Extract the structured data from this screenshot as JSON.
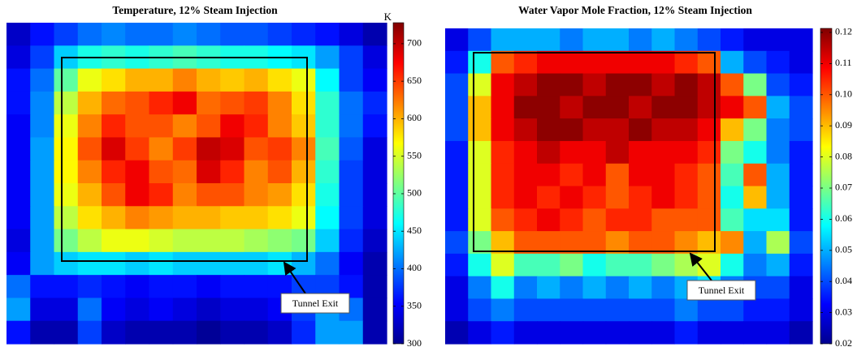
{
  "chart_data": [
    {
      "type": "heatmap",
      "title": "Temperature, 12% Steam Injection",
      "colormap": "jet",
      "colorbar_label": "K",
      "annotation": "Tunnel Exit",
      "zlim": [
        300,
        728
      ],
      "zticks": [
        300,
        350,
        400,
        450,
        500,
        550,
        600,
        650,
        700
      ],
      "z": [
        [
          330,
          360,
          380,
          400,
          410,
          400,
          400,
          410,
          400,
          390,
          390,
          380,
          370,
          360,
          340,
          320
        ],
        [
          340,
          380,
          440,
          470,
          480,
          470,
          480,
          490,
          480,
          470,
          470,
          460,
          450,
          420,
          380,
          340
        ],
        [
          360,
          400,
          500,
          560,
          580,
          600,
          600,
          620,
          600,
          590,
          600,
          580,
          560,
          460,
          380,
          350
        ],
        [
          360,
          410,
          540,
          600,
          630,
          640,
          660,
          680,
          630,
          640,
          650,
          620,
          580,
          480,
          400,
          370
        ],
        [
          350,
          410,
          560,
          620,
          660,
          640,
          640,
          620,
          640,
          680,
          660,
          620,
          590,
          480,
          400,
          360
        ],
        [
          350,
          420,
          570,
          640,
          690,
          650,
          620,
          650,
          700,
          690,
          640,
          650,
          620,
          490,
          390,
          340
        ],
        [
          350,
          420,
          570,
          620,
          660,
          680,
          640,
          630,
          690,
          660,
          620,
          640,
          600,
          480,
          380,
          340
        ],
        [
          350,
          420,
          560,
          600,
          640,
          680,
          660,
          620,
          640,
          640,
          620,
          610,
          580,
          470,
          380,
          340
        ],
        [
          350,
          420,
          540,
          580,
          600,
          620,
          610,
          600,
          600,
          590,
          590,
          580,
          560,
          460,
          380,
          340
        ],
        [
          340,
          420,
          510,
          540,
          560,
          560,
          550,
          540,
          540,
          540,
          530,
          520,
          510,
          440,
          370,
          330
        ],
        [
          350,
          420,
          440,
          450,
          450,
          440,
          450,
          440,
          440,
          440,
          440,
          450,
          430,
          400,
          350,
          320
        ],
        [
          400,
          360,
          360,
          370,
          360,
          350,
          360,
          360,
          350,
          360,
          360,
          360,
          380,
          380,
          360,
          320
        ],
        [
          420,
          340,
          340,
          400,
          350,
          340,
          350,
          340,
          330,
          340,
          340,
          350,
          380,
          420,
          400,
          320
        ],
        [
          360,
          320,
          320,
          380,
          330,
          320,
          320,
          320,
          310,
          320,
          320,
          330,
          370,
          420,
          420,
          320
        ]
      ]
    },
    {
      "type": "heatmap",
      "title": "Water Vapor Mole Fraction, 12% Steam Injection",
      "colormap": "jet",
      "annotation": "Tunnel Exit",
      "zlim": [
        0.02,
        0.1213
      ],
      "zticks": [
        0.02,
        0.03,
        0.04,
        0.05,
        0.06,
        0.07,
        0.08,
        0.09,
        {
          "value": 0.1,
          "label": "0.10"
        },
        0.11,
        0.12
      ],
      "z": [
        [
          0.03,
          0.04,
          0.05,
          0.05,
          0.05,
          0.045,
          0.05,
          0.05,
          0.045,
          0.05,
          0.045,
          0.04,
          0.035,
          0.03,
          0.03,
          0.03
        ],
        [
          0.035,
          0.06,
          0.1,
          0.105,
          0.11,
          0.11,
          0.11,
          0.11,
          0.11,
          0.11,
          0.105,
          0.1,
          0.05,
          0.04,
          0.035,
          0.03
        ],
        [
          0.04,
          0.08,
          0.11,
          0.115,
          0.12,
          0.12,
          0.115,
          0.12,
          0.12,
          0.115,
          0.12,
          0.115,
          0.1,
          0.07,
          0.04,
          0.035
        ],
        [
          0.04,
          0.09,
          0.11,
          0.12,
          0.12,
          0.115,
          0.12,
          0.12,
          0.115,
          0.12,
          0.12,
          0.115,
          0.11,
          0.1,
          0.05,
          0.04
        ],
        [
          0.04,
          0.09,
          0.11,
          0.115,
          0.12,
          0.12,
          0.115,
          0.115,
          0.12,
          0.115,
          0.115,
          0.11,
          0.09,
          0.07,
          0.045,
          0.04
        ],
        [
          0.035,
          0.08,
          0.105,
          0.11,
          0.115,
          0.11,
          0.11,
          0.115,
          0.11,
          0.11,
          0.11,
          0.105,
          0.07,
          0.06,
          0.045,
          0.035
        ],
        [
          0.035,
          0.08,
          0.105,
          0.11,
          0.11,
          0.105,
          0.11,
          0.1,
          0.11,
          0.11,
          0.105,
          0.1,
          0.065,
          0.1,
          0.05,
          0.035
        ],
        [
          0.035,
          0.08,
          0.105,
          0.11,
          0.105,
          0.11,
          0.105,
          0.1,
          0.105,
          0.11,
          0.105,
          0.1,
          0.06,
          0.09,
          0.05,
          0.035
        ],
        [
          0.035,
          0.08,
          0.1,
          0.105,
          0.11,
          0.105,
          0.1,
          0.105,
          0.105,
          0.1,
          0.1,
          0.1,
          0.065,
          0.055,
          0.055,
          0.035
        ],
        [
          0.04,
          0.07,
          0.09,
          0.1,
          0.1,
          0.1,
          0.1,
          0.095,
          0.1,
          0.1,
          0.095,
          0.09,
          0.095,
          0.05,
          0.075,
          0.04
        ],
        [
          0.035,
          0.06,
          0.08,
          0.065,
          0.065,
          0.07,
          0.06,
          0.065,
          0.065,
          0.07,
          0.075,
          0.08,
          0.06,
          0.045,
          0.05,
          0.035
        ],
        [
          0.03,
          0.045,
          0.06,
          0.045,
          0.05,
          0.045,
          0.05,
          0.045,
          0.05,
          0.045,
          0.05,
          0.055,
          0.045,
          0.04,
          0.04,
          0.03
        ],
        [
          0.03,
          0.04,
          0.045,
          0.04,
          0.04,
          0.04,
          0.04,
          0.04,
          0.04,
          0.04,
          0.045,
          0.04,
          0.04,
          0.035,
          0.035,
          0.03
        ],
        [
          0.025,
          0.03,
          0.035,
          0.03,
          0.03,
          0.03,
          0.03,
          0.03,
          0.03,
          0.03,
          0.035,
          0.03,
          0.03,
          0.03,
          0.03,
          0.025
        ]
      ]
    }
  ]
}
